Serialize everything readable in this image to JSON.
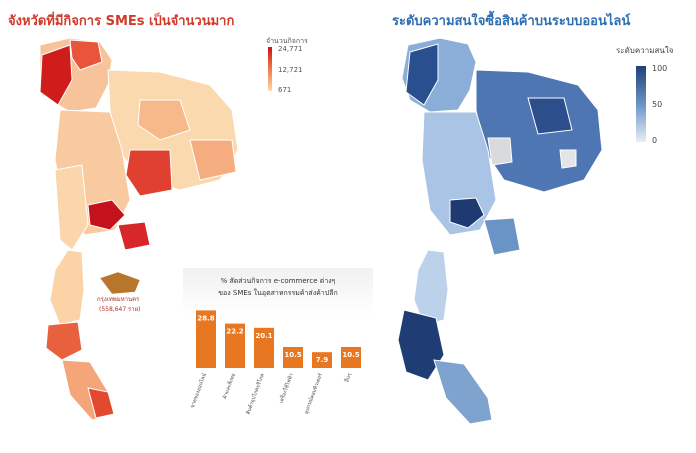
{
  "left_panel": {
    "title": "จังหวัดที่มีกิจการ SMEs เป็นจำนวนมาก",
    "legend": {
      "title": "จำนวนกิจการ",
      "max": "24,771",
      "mid": "12,721",
      "min": "671"
    },
    "bangkok_label": "กรุงเทพมหานคร",
    "bangkok_value": "(558,647 ราย)"
  },
  "right_panel": {
    "title": "ระดับความสนใจซื้อสินค้าบนระบบออนไลน์",
    "legend": {
      "title": "ระดับความสนใจ",
      "max": "100",
      "mid": "50",
      "min": "0"
    }
  },
  "inset": {
    "header_line1": "% สัดส่วนกิจการ e-commerce ต่างๆ",
    "header_line2": "ของ SMEs ในอุตสาหกรรมค้าส่งค้าปลีก"
  },
  "chart_data": {
    "type": "bar",
    "title": "% สัดส่วนกิจการ e-commerce ต่างๆ ของ SMEs ในอุตสาหกรรมค้าส่งค้าปลีก",
    "categories": [
      "ขายของออนไลน์",
      "ผ้าและสิ่งทอ",
      "สินค้าอุปโภคบริโภค",
      "เครื่องใช้ไฟฟ้า",
      "อุปกรณ์คอมพิวเตอร์",
      "อื่นๆ"
    ],
    "values": [
      28.8,
      22.2,
      20.1,
      10.5,
      7.9,
      10.5
    ],
    "ylim": [
      0,
      30
    ],
    "grid": false,
    "legend": "none",
    "color": "#e87722"
  }
}
